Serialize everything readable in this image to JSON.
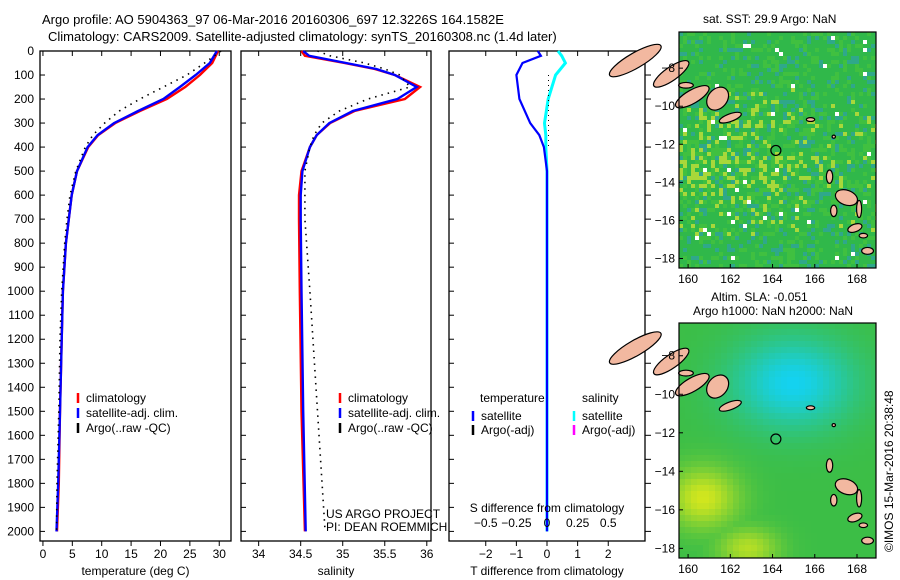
{
  "header": {
    "line1": "Argo profile: AO 5904363_97 06-Mar-2016 20160306_697 12.3226S 164.1582E",
    "line2": "Climatology: CARS2009. Satellite-adjusted climatology: synTS_20160308.nc (1.4d later)"
  },
  "credits": {
    "project": "US ARGO PROJECT",
    "pi": "PI: DEAN ROEMMICH",
    "imos": "©IMOS 15-Mar-2016 20:38:48"
  },
  "colors": {
    "climatology": "#ff0000",
    "satellite": "#0000ff",
    "argo": "#000000",
    "sal_satellite": "#00ffff",
    "sal_argo": "#ff00ff",
    "land": "#f2b8a0"
  },
  "chart_data": [
    {
      "type": "line",
      "id": "temperature",
      "xlabel": "temperature (deg C)",
      "ylabel": "",
      "xlim": [
        -0.5,
        32
      ],
      "ylim": [
        0,
        2040
      ],
      "xticks": [
        0,
        5,
        10,
        15,
        20,
        25,
        30
      ],
      "yticks": [
        0,
        100,
        200,
        300,
        400,
        500,
        600,
        700,
        800,
        900,
        1000,
        1100,
        1200,
        1300,
        1400,
        1500,
        1600,
        1700,
        1800,
        1900,
        2000
      ],
      "legend": [
        "climatology",
        "satellite-adj. clim.",
        "Argo(..raw -QC)"
      ],
      "legend_placement": "lower-center",
      "depth": [
        0,
        50,
        100,
        150,
        200,
        250,
        300,
        350,
        400,
        500,
        600,
        700,
        800,
        1000,
        1200,
        1500,
        1800,
        2000
      ],
      "series": [
        {
          "name": "climatology",
          "style": "solid",
          "values": [
            29.8,
            28.8,
            26.7,
            24.2,
            21.1,
            16.5,
            12.3,
            9.4,
            7.7,
            5.8,
            4.9,
            4.4,
            3.9,
            3.4,
            3.2,
            2.9,
            2.7,
            2.4
          ]
        },
        {
          "name": "satellite-adj. clim.",
          "style": "solid",
          "values": [
            29.6,
            28.4,
            26.0,
            23.3,
            20.5,
            16.2,
            12.1,
            9.3,
            7.6,
            5.8,
            4.9,
            4.4,
            3.9,
            3.4,
            3.2,
            2.9,
            2.6,
            2.3
          ]
        },
        {
          "name": "Argo(..raw -QC)",
          "style": "dotted",
          "values": [
            30.3,
            27.5,
            24.5,
            20.5,
            16.5,
            13.0,
            10.5,
            8.5,
            7.2,
            5.6,
            4.6,
            4.1,
            3.7,
            3.2,
            2.9,
            2.7,
            2.4,
            2.3
          ]
        }
      ]
    },
    {
      "type": "line",
      "id": "salinity",
      "xlabel": "salinity",
      "xlim": [
        33.79,
        36.05
      ],
      "ylim": [
        0,
        2040
      ],
      "xticks": [
        34,
        34.5,
        35,
        35.5,
        36
      ],
      "xticklabels": [
        "34",
        "34.5",
        "35",
        "35.5",
        "36"
      ],
      "legend": [
        "climatology",
        "satellite-adj. clim.",
        "Argo(..raw -QC)"
      ],
      "legend_placement": "lower-center",
      "depth": [
        0,
        20,
        50,
        75,
        100,
        150,
        200,
        250,
        300,
        350,
        400,
        500,
        600,
        700,
        1000,
        1500,
        2000
      ],
      "series": [
        {
          "name": "climatology",
          "style": "solid",
          "values": [
            34.51,
            34.55,
            35.02,
            35.38,
            35.62,
            35.92,
            35.74,
            35.14,
            34.85,
            34.69,
            34.61,
            34.51,
            34.48,
            34.48,
            34.49,
            34.51,
            34.55
          ]
        },
        {
          "name": "satellite-adj. clim.",
          "style": "solid",
          "values": [
            34.53,
            34.6,
            35.04,
            35.4,
            35.62,
            35.88,
            35.65,
            35.12,
            34.84,
            34.69,
            34.61,
            34.52,
            34.5,
            34.5,
            34.51,
            34.53,
            34.56
          ]
        },
        {
          "name": "Argo(..raw -QC)",
          "style": "dotted",
          "values": [
            34.7,
            34.85,
            35.26,
            35.5,
            35.68,
            35.8,
            35.3,
            34.96,
            34.75,
            34.66,
            34.61,
            34.55,
            34.55,
            34.55,
            34.61,
            34.7,
            34.79
          ]
        }
      ]
    },
    {
      "type": "line",
      "id": "difference",
      "xlabel": "T difference from climatology",
      "x2label": "S difference from climatology",
      "xlim": [
        -3.2,
        3.2
      ],
      "ylim": [
        0,
        2040
      ],
      "xticks": [
        -2,
        -1,
        0,
        1,
        2
      ],
      "s_xticks": [
        -0.5,
        -0.25,
        0,
        0.25,
        0.5
      ],
      "s_xticklabels": [
        "-0.5",
        "-0.25",
        "0",
        "0.25",
        "0.5"
      ],
      "legend_temperature_title": "temperature",
      "legend_salinity_title": "salinity",
      "legend": [
        "satellite",
        "Argo(-adj)",
        "satellite",
        "Argo(-adj)"
      ],
      "legend_placement": "center",
      "depth": [
        0,
        20,
        50,
        100,
        200,
        300,
        350,
        400,
        500,
        700,
        1000,
        1500,
        2000
      ],
      "series": [
        {
          "name": "T satellite",
          "axis": "T",
          "values": [
            -0.3,
            -0.2,
            -0.8,
            -1.0,
            -0.9,
            -0.55,
            -0.25,
            -0.1,
            0,
            0,
            0,
            0,
            0
          ]
        },
        {
          "name": "S satellite",
          "axis": "S",
          "values": [
            0.09,
            0.12,
            0.15,
            0.07,
            0.01,
            -0.02,
            -0.01,
            -0.01,
            0,
            0,
            0,
            0,
            0
          ]
        },
        {
          "name": "T Argo(-adj)",
          "axis": "T",
          "values": [
            null,
            null,
            null,
            0.05,
            0.05,
            0.05,
            0.05,
            0.05,
            null,
            null,
            null,
            null,
            null
          ]
        }
      ]
    },
    {
      "type": "heatmap",
      "id": "sst_map",
      "title": "sat. SST: 29.9 Argo: NaN",
      "xlim": [
        159.57,
        168.9
      ],
      "ylim": [
        -18.5,
        -6.1
      ],
      "xticks": [
        160,
        162,
        164,
        166,
        168
      ],
      "yticks": [
        -8,
        -10,
        -12,
        -14,
        -16,
        -18
      ],
      "argo_position": [
        164.158,
        -12.323
      ]
    },
    {
      "type": "heatmap",
      "id": "sla_map",
      "title": "Altim. SLA: -0.051",
      "subtitle": "Argo h1000: NaN h2000: NaN",
      "xlim": [
        159.57,
        168.9
      ],
      "ylim": [
        -18.5,
        -6.3
      ],
      "xticks": [
        160,
        162,
        164,
        166,
        168
      ],
      "yticks": [
        -8,
        -10,
        -12,
        -14,
        -16,
        -18
      ],
      "argo_position": [
        164.158,
        -12.323
      ]
    }
  ]
}
